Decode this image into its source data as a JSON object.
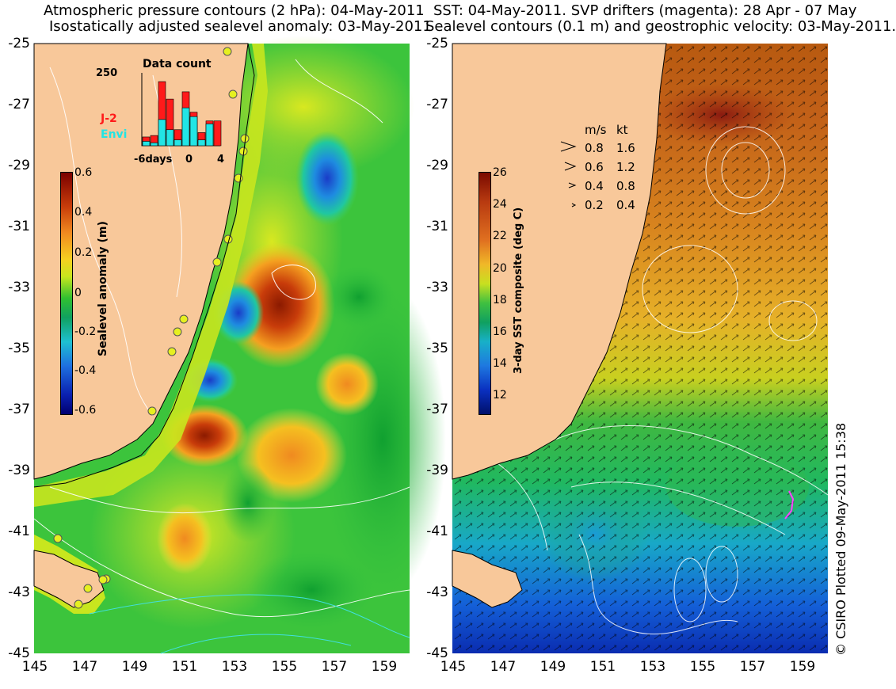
{
  "left_panel": {
    "title_line1": "Atmospheric pressure contours (2 hPa): 04-May-2011",
    "title_line2": "Isostatically adjusted sealevel anomaly: 03-May-2011",
    "colorbar": {
      "label": "Sealevel anomaly (m)",
      "ticks": [
        "0.6",
        "0.4",
        "0.2",
        "0",
        "-0.2",
        "-0.4",
        "-0.6"
      ]
    },
    "inset": {
      "title": "Data count",
      "y_max_label": "250",
      "x_tick_labels": [
        "-6days",
        "0",
        "4"
      ],
      "legend": [
        {
          "name": "J-2",
          "color": "#ff1a1a"
        },
        {
          "name": "Envi",
          "color": "#22e5e5"
        }
      ],
      "bars": [
        {
          "envi": 15,
          "j2": 30
        },
        {
          "envi": 10,
          "j2": 35
        },
        {
          "envi": 90,
          "j2": 220
        },
        {
          "envi": 55,
          "j2": 160
        },
        {
          "envi": 20,
          "j2": 55
        },
        {
          "envi": 130,
          "j2": 185
        },
        {
          "envi": 100,
          "j2": 115
        },
        {
          "envi": 20,
          "j2": 45
        },
        {
          "envi": 75,
          "j2": 85
        },
        {
          "envi": 0,
          "j2": 85
        }
      ]
    }
  },
  "right_panel": {
    "title_line1": "SST: 04-May-2011. SVP drifters (magenta): 28 Apr - 07 May",
    "title_line2": "Sealevel contours (0.1 m) and geostrophic velocity: 03-May-2011.",
    "colorbar": {
      "label": "3-day SST composite (deg C)",
      "ticks": [
        "26",
        "24",
        "22",
        "20",
        "18",
        "16",
        "14",
        "12"
      ]
    },
    "velocity_legend": {
      "header_ms": "m/s",
      "header_kt": "kt",
      "rows": [
        {
          "ms": "0.8",
          "kt": "1.6"
        },
        {
          "ms": "0.6",
          "kt": "1.2"
        },
        {
          "ms": "0.4",
          "kt": "0.8"
        },
        {
          "ms": "0.2",
          "kt": "0.4"
        }
      ]
    }
  },
  "axes": {
    "y_ticks": [
      "-25",
      "-27",
      "-29",
      "-31",
      "-33",
      "-35",
      "-37",
      "-39",
      "-41",
      "-43",
      "-45"
    ],
    "x_ticks": [
      "145",
      "147",
      "149",
      "151",
      "153",
      "155",
      "157",
      "159"
    ]
  },
  "credit": "© CSIRO Plotted 09-May-2011 15:38"
}
